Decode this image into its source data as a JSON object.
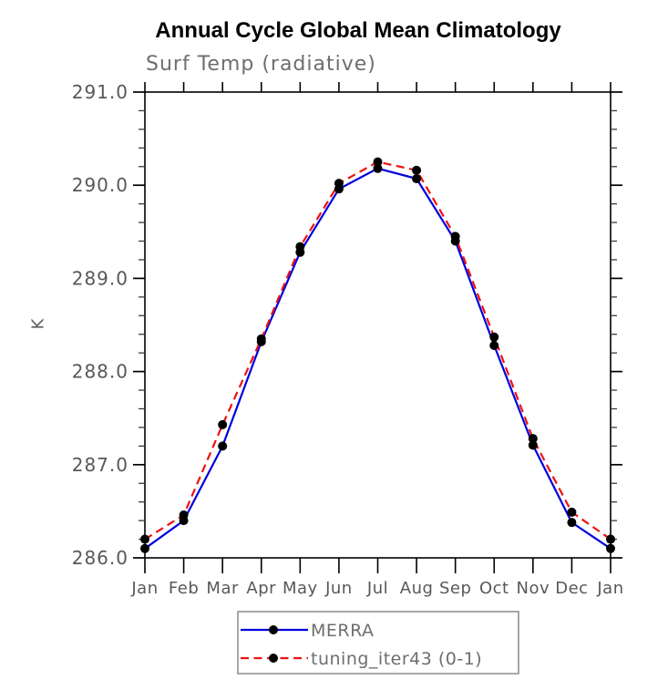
{
  "header": {
    "title": "Annual Cycle Global Mean Climatology",
    "subtitle": "Surf Temp (radiative)"
  },
  "chart_data": {
    "type": "line",
    "title": "Annual Cycle Global Mean Climatology",
    "subtitle": "Surf Temp (radiative)",
    "xlabel": "",
    "ylabel": "K",
    "ylim": [
      286.0,
      291.0
    ],
    "y_major_step": 1.0,
    "y_minor_step": 0.2,
    "y_tick_labels": [
      "286.0",
      "287.0",
      "288.0",
      "289.0",
      "290.0",
      "291.0"
    ],
    "categories": [
      "Jan",
      "Feb",
      "Mar",
      "Apr",
      "May",
      "Jun",
      "Jul",
      "Aug",
      "Sep",
      "Oct",
      "Nov",
      "Dec",
      "Jan"
    ],
    "series": [
      {
        "name": "MERRA",
        "color": "#0000dd",
        "line_style": "solid",
        "marker": "circle",
        "marker_color": "#000000",
        "values": [
          286.1,
          286.4,
          287.2,
          288.32,
          289.28,
          289.96,
          290.18,
          290.07,
          289.4,
          288.28,
          287.21,
          286.38,
          286.1
        ]
      },
      {
        "name": "tuning_iter43 (0-1)",
        "color": "#ee1111",
        "line_style": "dashed",
        "marker": "circle",
        "marker_color": "#000000",
        "values": [
          286.2,
          286.46,
          287.43,
          288.35,
          289.34,
          290.02,
          290.25,
          290.16,
          289.45,
          288.37,
          287.28,
          286.49,
          286.2
        ]
      }
    ],
    "legend_position": "bottom-center",
    "grid": false,
    "frame_color": "#000000",
    "tick_label_color": "#585858",
    "legend_text_color": "#6e6e6e",
    "legend_border_color": "#8a8a8a"
  }
}
